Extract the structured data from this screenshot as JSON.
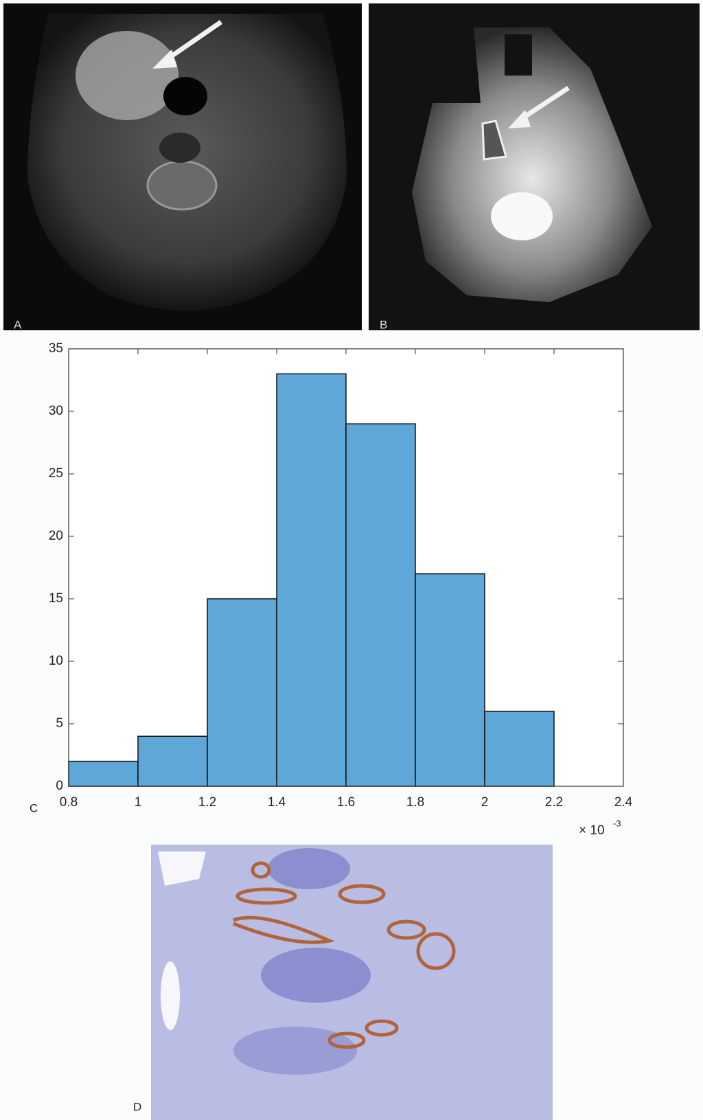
{
  "panel_labels": [
    "A",
    "B",
    "C",
    "D"
  ],
  "chart_data": {
    "type": "histogram",
    "bins": [
      0.8,
      1.0,
      1.2,
      1.4,
      1.6,
      1.8,
      2.0,
      2.2
    ],
    "values": [
      2,
      4,
      15,
      33,
      29,
      17,
      6
    ],
    "color": "#5fa7d8",
    "xlim": [
      0.8,
      2.4
    ],
    "xticks": [
      0.8,
      1,
      1.2,
      1.4,
      1.6,
      1.8,
      2,
      2.2,
      2.4
    ],
    "ylim": [
      0,
      35
    ],
    "yticks": [
      0,
      5,
      10,
      15,
      20,
      25,
      30,
      35
    ],
    "x_multiplier": {
      "base": "× 10",
      "exponent": "-3"
    }
  }
}
